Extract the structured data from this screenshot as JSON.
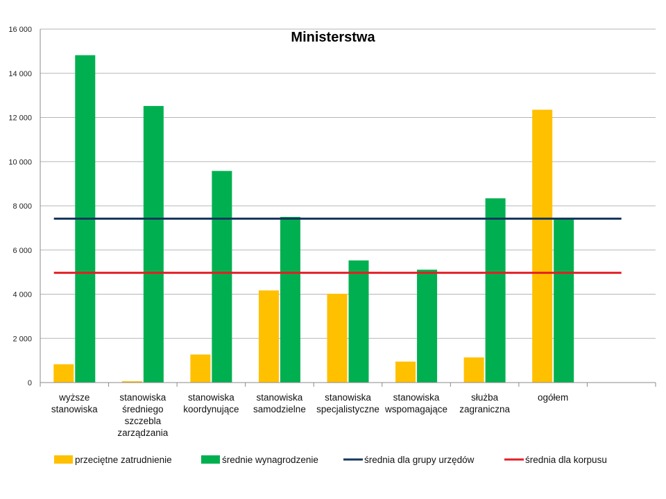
{
  "chart_data": {
    "type": "bar",
    "title": "Ministerstwa",
    "categories": [
      [
        "wyższe",
        "stanowiska"
      ],
      [
        "stanowiska",
        "średniego",
        "szczebla",
        "zarządzania"
      ],
      [
        "stanowiska",
        "koordynujące"
      ],
      [
        "stanowiska",
        "samodzielne"
      ],
      [
        "stanowiska",
        "specjalistyczne"
      ],
      [
        "stanowiska",
        "wspomagające"
      ],
      [
        "służba",
        "zagraniczna"
      ],
      [
        "ogółem"
      ],
      [
        ""
      ]
    ],
    "series": [
      {
        "name": "przeciętne zatrudnienie",
        "color": "#FFC000",
        "values": [
          830,
          60,
          1270,
          4170,
          4020,
          950,
          1140,
          12350,
          null
        ]
      },
      {
        "name": "średnie wynagrodzenie",
        "color": "#00B050",
        "values": [
          14820,
          12520,
          9580,
          7500,
          5530,
          5110,
          8340,
          7400,
          null
        ]
      }
    ],
    "reference_lines": [
      {
        "name": "średnia dla grupy urzędów",
        "color": "#17375E",
        "value": 7420
      },
      {
        "name": "średnia dla korpusu",
        "color": "#E31E24",
        "value": 4970
      }
    ],
    "ylim": [
      0,
      16000
    ],
    "yticks": [
      "0",
      "2 000",
      "4 000",
      "6 000",
      "8 000",
      "10 000",
      "12 000",
      "14 000",
      "16 000"
    ],
    "ytick_values": [
      0,
      2000,
      4000,
      6000,
      8000,
      10000,
      12000,
      14000,
      16000
    ],
    "grid": true,
    "legend_position": "bottom"
  }
}
